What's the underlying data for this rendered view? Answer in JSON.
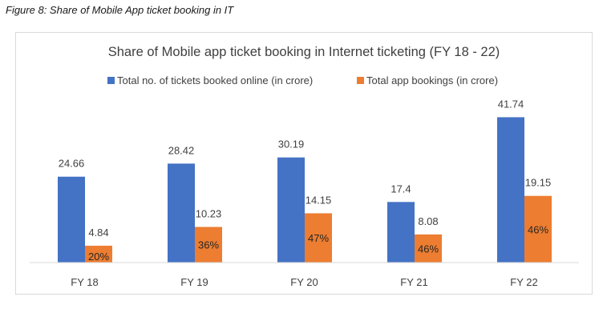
{
  "figure_caption": "Figure 8: Share of Mobile App ticket booking in IT",
  "colors": {
    "online": "#4472C4",
    "app": "#ED7D31",
    "axis": "#d9d9d9"
  },
  "chart_data": {
    "type": "bar",
    "title": "Share of Mobile app ticket booking in Internet ticketing (FY 18 - 22)",
    "xlabel": "",
    "ylabel": "",
    "ylim": [
      0,
      45
    ],
    "grid": false,
    "legend_position": "top",
    "categories": [
      "FY 18",
      "FY 19",
      "FY 20",
      "FY 21",
      "FY 22"
    ],
    "series": [
      {
        "name": "Total no. of tickets booked online (in crore)",
        "values": [
          24.66,
          28.42,
          30.19,
          17.4,
          41.74
        ],
        "labels": [
          "24.66",
          "28.42",
          "30.19",
          "17.4",
          "41.74"
        ]
      },
      {
        "name": "Total app bookings (in crore)",
        "values": [
          4.84,
          10.23,
          14.15,
          8.08,
          19.15
        ],
        "labels": [
          "4.84",
          "10.23",
          "14.15",
          "8.08",
          "19.15"
        ]
      }
    ],
    "share_labels": [
      "20%",
      "36%",
      "47%",
      "46%",
      "46%"
    ]
  }
}
